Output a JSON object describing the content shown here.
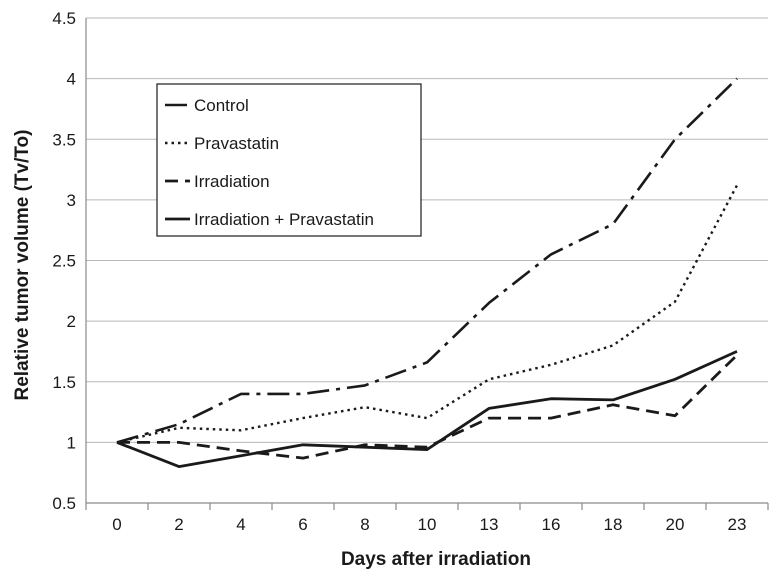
{
  "chart_data": {
    "type": "line",
    "title": "",
    "xlabel": "Days after irradiation",
    "ylabel": "Relative tumor volume (Tv/To)",
    "categories": [
      "0",
      "2",
      "4",
      "6",
      "8",
      "10",
      "13",
      "16",
      "18",
      "20",
      "23"
    ],
    "ylim": [
      0.5,
      4.5
    ],
    "yticks": [
      "0.5",
      "1",
      "1.5",
      "2",
      "2.5",
      "3",
      "3.5",
      "4",
      "4.5"
    ],
    "grid": "horizontal",
    "legend_position": "top-left",
    "series": [
      {
        "name": "Control",
        "style": "dash-dot",
        "color": "#1a1a1a",
        "values": [
          1.0,
          1.15,
          1.4,
          1.4,
          1.47,
          1.66,
          2.15,
          2.55,
          2.8,
          3.5,
          4.0
        ]
      },
      {
        "name": "Pravastatin",
        "style": "dotted",
        "color": "#1a1a1a",
        "values": [
          1.0,
          1.12,
          1.1,
          1.2,
          1.29,
          1.2,
          1.52,
          1.64,
          1.8,
          2.16,
          3.12
        ]
      },
      {
        "name": "Irradiation",
        "style": "dashed",
        "color": "#1a1a1a",
        "values": [
          1.0,
          1.0,
          0.93,
          0.87,
          0.98,
          0.96,
          1.2,
          1.2,
          1.31,
          1.22,
          1.72
        ]
      },
      {
        "name": "Irradiation + Pravastatin",
        "style": "solid",
        "color": "#1a1a1a",
        "values": [
          1.0,
          0.8,
          0.89,
          0.98,
          0.96,
          0.94,
          1.28,
          1.36,
          1.35,
          1.52,
          1.75
        ]
      }
    ]
  }
}
